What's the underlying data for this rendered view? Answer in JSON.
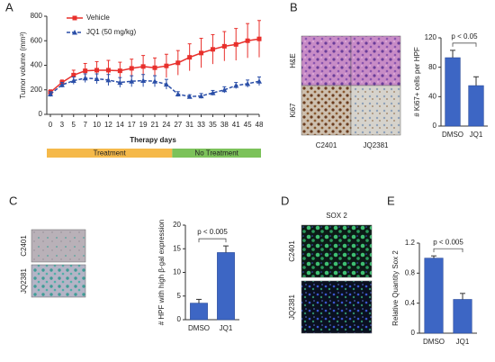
{
  "chart_data": [
    {
      "panel": "A",
      "type": "line",
      "categories": [
        "0",
        "3",
        "5",
        "7",
        "10",
        "12",
        "14",
        "17",
        "19",
        "21",
        "24",
        "27",
        "31",
        "33",
        "35",
        "38",
        "41",
        "45",
        "48"
      ],
      "xlabel": "Therapy days",
      "ylabel": "Tumor volume (mm³)",
      "ylim": [
        0,
        800
      ],
      "yticks": [
        0,
        200,
        400,
        600,
        800
      ],
      "series": [
        {
          "name": "Vehicle",
          "color": "#e8302c",
          "marker": "square",
          "dash": false,
          "values": [
            180,
            260,
            320,
            355,
            360,
            360,
            355,
            375,
            390,
            380,
            395,
            420,
            465,
            500,
            530,
            555,
            570,
            600,
            615
          ],
          "errors": [
            20,
            20,
            40,
            60,
            70,
            80,
            70,
            75,
            90,
            80,
            95,
            100,
            110,
            120,
            120,
            120,
            130,
            140,
            150
          ]
        },
        {
          "name": "JQ1 (50 mg/kg)",
          "color": "#2b4fa8",
          "marker": "triangle",
          "dash": true,
          "values": [
            165,
            240,
            275,
            295,
            290,
            280,
            260,
            270,
            275,
            270,
            245,
            165,
            145,
            150,
            175,
            200,
            235,
            250,
            270
          ],
          "errors": [
            20,
            20,
            30,
            35,
            40,
            45,
            40,
            45,
            50,
            45,
            40,
            20,
            15,
            20,
            20,
            25,
            25,
            30,
            35
          ]
        }
      ],
      "annotations": [
        "Treatment",
        "No Treatment"
      ]
    },
    {
      "panel": "B",
      "type": "bar",
      "categories": [
        "DMSO",
        "JQ1"
      ],
      "values": [
        93,
        55
      ],
      "errors": [
        10,
        12
      ],
      "color": "#3d66c4",
      "ylabel": "# Ki67+ cells per HPF",
      "ylim": [
        0,
        120
      ],
      "yticks": [
        0,
        40,
        80,
        120
      ],
      "annotation": "p < 0.05",
      "image_labels": {
        "rows": [
          "H&E",
          "Ki67"
        ],
        "columns": [
          "C2401",
          "JQ2381"
        ]
      }
    },
    {
      "panel": "C",
      "type": "bar",
      "categories": [
        "DMSO",
        "JQ1"
      ],
      "values": [
        3.5,
        14.2
      ],
      "errors": [
        0.8,
        1.4
      ],
      "color": "#3d66c4",
      "ylabel": "# HPF with high β-gal expression",
      "ylim": [
        0,
        20
      ],
      "yticks": [
        0,
        5,
        10,
        15,
        20
      ],
      "annotation": "p < 0.005",
      "image_labels": {
        "rows": [
          "C2401",
          "JQ2381"
        ]
      }
    },
    {
      "panel": "D",
      "type": "image",
      "title": "SOX 2",
      "image_labels": {
        "rows": [
          "C2401",
          "JQ2381"
        ]
      }
    },
    {
      "panel": "E",
      "type": "bar",
      "categories": [
        "DMSO",
        "JQ1"
      ],
      "values": [
        1.0,
        0.45
      ],
      "errors": [
        0.03,
        0.08
      ],
      "color": "#3d66c4",
      "ylabel": "Relative Quantity Sox 2",
      "ylim": [
        0,
        1.2
      ],
      "yticks": [
        0,
        0.4,
        0.8,
        1.2
      ],
      "annotation": "p < 0.005"
    }
  ]
}
